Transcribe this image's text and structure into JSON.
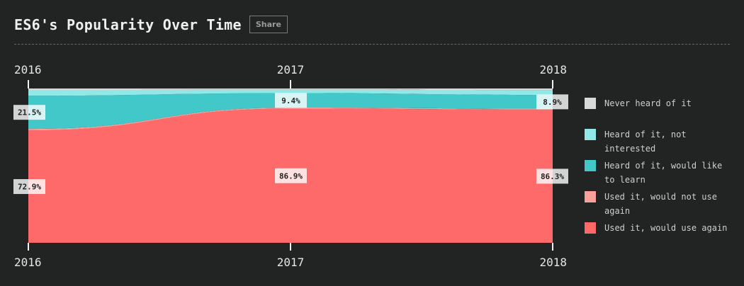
{
  "header": {
    "title": "ES6's Popularity Over Time",
    "share_label": "Share"
  },
  "chart_data": {
    "type": "area",
    "stacked": true,
    "percent": true,
    "title": "ES6's Popularity Over Time",
    "x": [
      "2016",
      "2017",
      "2018"
    ],
    "series": [
      {
        "name": "Used it, would use again",
        "values": [
          72.9,
          86.9,
          86.3
        ],
        "color": "#fe6a6a"
      },
      {
        "name": "Used it, would not use again",
        "values": [
          0.9,
          0.7,
          0.6
        ],
        "color": "#f9a09b"
      },
      {
        "name": "Heard of it, would like to learn",
        "values": [
          21.5,
          9.4,
          8.9
        ],
        "color": "#42c8c9"
      },
      {
        "name": "Heard of it, not interested",
        "values": [
          3.8,
          2.2,
          3.2
        ],
        "color": "#90e9e6"
      },
      {
        "name": "Never heard of it",
        "values": [
          0.9,
          0.8,
          1.0
        ],
        "color": "#d9d9d9"
      }
    ],
    "data_labels": [
      {
        "series": "Used it, would use again",
        "values": [
          "72.9%",
          "86.9%",
          "86.3%"
        ]
      },
      {
        "series": "Heard of it, would like to learn",
        "values": [
          "21.5%",
          "9.4%",
          "8.9%"
        ]
      }
    ],
    "legend_position": "right"
  },
  "legend": [
    {
      "label": "Never heard of it",
      "color": "#d9d9d9"
    },
    {
      "label": "Heard of it, not interested",
      "color": "#90e9e6"
    },
    {
      "label": "Heard of it, would like to learn",
      "color": "#42c8c9"
    },
    {
      "label": "Used it, would not use again",
      "color": "#f9a09b"
    },
    {
      "label": "Used it, would use again",
      "color": "#fe6a6a"
    }
  ]
}
